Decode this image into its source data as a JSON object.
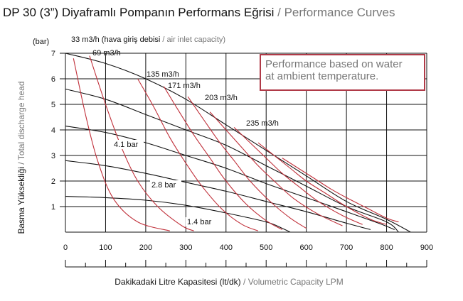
{
  "title": {
    "tr": "DP 30 (3”) Diyaframlı Pompanın Performans Eğrisi",
    "sep": "/",
    "en": "Performance Curves"
  },
  "note": {
    "line1": "Performance based on water",
    "line2": "at ambient temperature."
  },
  "colors": {
    "air_curve": "#c0303a",
    "pressure_curve": "#111111",
    "note_border": "#b03a48",
    "grid": "#111111",
    "secondary_text": "#777777"
  },
  "chart_data": {
    "type": "line",
    "title": "DP 30 (3”) Diyaframlı Pompanın Performans Eğrisi / Performance Curves",
    "xlabel": {
      "tr": "Dakikadaki Litre Kapasitesi (lt/dk)",
      "sep": "/",
      "en": "Volumetric Capacity LPM"
    },
    "ylabel": {
      "tr": "Basma Yüksekliği",
      "sep": "/",
      "en": "Total discharge head"
    },
    "yunit": "(bar)",
    "xlim": [
      0,
      900
    ],
    "ylim": [
      0,
      7
    ],
    "xticks": [
      0,
      100,
      200,
      300,
      400,
      500,
      600,
      700,
      800,
      900
    ],
    "yticks": [
      1,
      2,
      3,
      4,
      5,
      6,
      7
    ],
    "grid": true,
    "pressure_series": [
      {
        "name": "7 bar",
        "label": "",
        "points": [
          [
            0,
            7.0
          ],
          [
            100,
            6.6
          ],
          [
            200,
            6.0
          ],
          [
            300,
            5.2
          ],
          [
            400,
            4.2
          ],
          [
            500,
            3.2
          ],
          [
            600,
            2.2
          ],
          [
            700,
            1.2
          ],
          [
            800,
            0.5
          ],
          [
            860,
            0.0
          ]
        ]
      },
      {
        "name": "5.6 bar",
        "label": "",
        "points": [
          [
            0,
            5.6
          ],
          [
            100,
            5.2
          ],
          [
            200,
            4.6
          ],
          [
            300,
            4.0
          ],
          [
            400,
            3.4
          ],
          [
            500,
            2.6
          ],
          [
            600,
            1.8
          ],
          [
            700,
            1.0
          ],
          [
            800,
            0.4
          ],
          [
            830,
            0.0
          ]
        ]
      },
      {
        "name": "4.1 bar",
        "label": "4.1 bar",
        "points": [
          [
            0,
            4.15
          ],
          [
            100,
            3.9
          ],
          [
            200,
            3.5
          ],
          [
            300,
            3.0
          ],
          [
            400,
            2.5
          ],
          [
            500,
            1.9
          ],
          [
            600,
            1.35
          ],
          [
            700,
            0.8
          ],
          [
            780,
            0.35
          ],
          [
            820,
            0.1
          ]
        ]
      },
      {
        "name": "2.8 bar",
        "label": "2.8 bar",
        "points": [
          [
            0,
            2.8
          ],
          [
            100,
            2.6
          ],
          [
            200,
            2.3
          ],
          [
            300,
            1.95
          ],
          [
            400,
            1.6
          ],
          [
            500,
            1.2
          ],
          [
            600,
            0.8
          ],
          [
            700,
            0.35
          ],
          [
            760,
            0.1
          ]
        ]
      },
      {
        "name": "1.4 bar",
        "label": "1.4 bar",
        "points": [
          [
            0,
            1.4
          ],
          [
            100,
            1.35
          ],
          [
            200,
            1.25
          ],
          [
            300,
            1.05
          ],
          [
            400,
            0.75
          ],
          [
            500,
            0.4
          ],
          [
            540,
            0.15
          ],
          [
            560,
            0.0
          ]
        ]
      }
    ],
    "air_series": [
      {
        "name": "33 m3/h",
        "label": "33 m3/h",
        "suffix_tr": "(hava giriş debisi",
        "suffix_sep": "/",
        "suffix_en": "air inlet capacity)",
        "points": [
          [
            20,
            6.8
          ],
          [
            50,
            4.6
          ],
          [
            80,
            2.8
          ],
          [
            120,
            1.3
          ],
          [
            180,
            0.4
          ],
          [
            260,
            0.05
          ]
        ]
      },
      {
        "name": "69 m3/h",
        "label": "69 m3/h",
        "points": [
          [
            60,
            6.9
          ],
          [
            100,
            5.0
          ],
          [
            140,
            3.3
          ],
          [
            180,
            2.0
          ],
          [
            230,
            1.0
          ],
          [
            290,
            0.25
          ],
          [
            320,
            0.05
          ]
        ]
      },
      {
        "name": "135 m3/h",
        "label": "135 m3/h",
        "points": [
          [
            180,
            6.0
          ],
          [
            220,
            4.9
          ],
          [
            260,
            3.7
          ],
          [
            300,
            2.7
          ],
          [
            340,
            1.8
          ],
          [
            390,
            0.9
          ],
          [
            440,
            0.3
          ],
          [
            480,
            0.05
          ]
        ]
      },
      {
        "name": "171 m3/h",
        "label": "171 m3/h",
        "points": [
          [
            245,
            5.7
          ],
          [
            280,
            4.8
          ],
          [
            320,
            3.8
          ],
          [
            360,
            2.9
          ],
          [
            400,
            2.0
          ],
          [
            450,
            1.1
          ],
          [
            500,
            0.45
          ],
          [
            540,
            0.1
          ]
        ]
      },
      {
        "name": "203 m3/h",
        "label": "203 m3/h",
        "points": [
          [
            305,
            5.3
          ],
          [
            340,
            4.5
          ],
          [
            380,
            3.6
          ],
          [
            420,
            2.8
          ],
          [
            460,
            2.0
          ],
          [
            510,
            1.2
          ],
          [
            560,
            0.55
          ],
          [
            600,
            0.15
          ]
        ]
      },
      {
        "name": "235 m3/h",
        "label": "235 m3/h",
        "points": [
          [
            360,
            4.7
          ],
          [
            400,
            4.0
          ],
          [
            440,
            3.3
          ],
          [
            480,
            2.6
          ],
          [
            520,
            2.0
          ],
          [
            570,
            1.3
          ],
          [
            630,
            0.7
          ],
          [
            690,
            0.25
          ]
        ]
      },
      {
        "name": "",
        "label": "",
        "points": [
          [
            420,
            4.1
          ],
          [
            460,
            3.5
          ],
          [
            500,
            2.9
          ],
          [
            540,
            2.3
          ],
          [
            580,
            1.8
          ],
          [
            630,
            1.2
          ],
          [
            690,
            0.65
          ],
          [
            740,
            0.3
          ]
        ]
      },
      {
        "name": "",
        "label": "",
        "points": [
          [
            480,
            3.5
          ],
          [
            520,
            3.0
          ],
          [
            560,
            2.5
          ],
          [
            600,
            2.0
          ],
          [
            650,
            1.5
          ],
          [
            700,
            1.0
          ],
          [
            760,
            0.5
          ],
          [
            800,
            0.3
          ]
        ]
      },
      {
        "name": "",
        "label": "",
        "points": [
          [
            540,
            2.9
          ],
          [
            580,
            2.5
          ],
          [
            620,
            2.1
          ],
          [
            660,
            1.7
          ],
          [
            700,
            1.35
          ],
          [
            750,
            0.95
          ],
          [
            800,
            0.55
          ],
          [
            830,
            0.4
          ]
        ]
      }
    ]
  }
}
